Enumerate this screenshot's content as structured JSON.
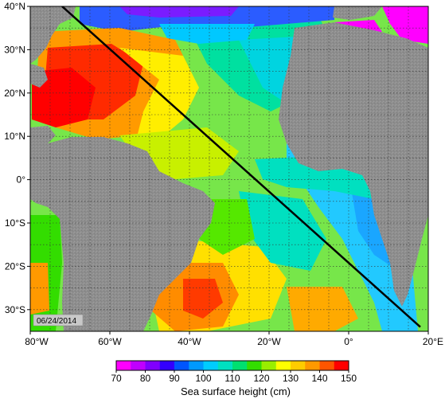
{
  "map": {
    "date_label": "06/24/2014",
    "lat_ticks": [
      "40°N",
      "30°N",
      "20°N",
      "10°N",
      "0°",
      "10°S",
      "20°S",
      "30°S"
    ],
    "lon_ticks": [
      "80°W",
      "60°W",
      "40°W",
      "20°W",
      "0°",
      "20°E"
    ],
    "lat_range": [
      -35,
      40
    ],
    "lon_range": [
      -80,
      20
    ],
    "track": {
      "start": {
        "lon": -72,
        "lat": 40
      },
      "end": {
        "lon": 18,
        "lat": -34
      }
    },
    "colors": {
      "land": "#8c8c8c",
      "track": "#000000"
    }
  },
  "colorbar": {
    "title": "Sea surface height (cm)",
    "range": [
      70,
      150
    ],
    "tick_labels": [
      "70",
      "80",
      "90",
      "100",
      "110",
      "120",
      "130",
      "140",
      "150"
    ],
    "colors": [
      "#ff00ff",
      "#c000ff",
      "#8000ff",
      "#3300ff",
      "#0055ff",
      "#0099ff",
      "#00ccff",
      "#00e0c0",
      "#00e070",
      "#33dd00",
      "#99ee00",
      "#ffff00",
      "#ffcc00",
      "#ff9900",
      "#ff5500",
      "#ff0000"
    ]
  }
}
